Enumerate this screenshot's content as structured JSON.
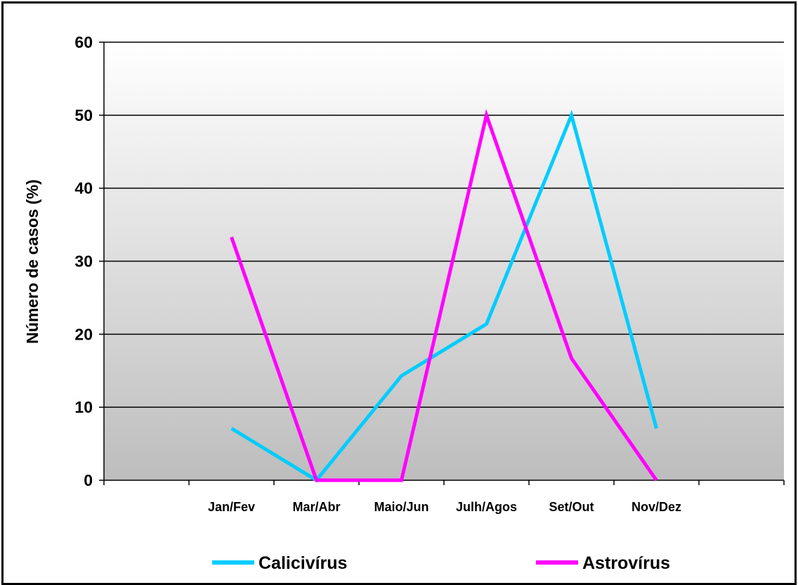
{
  "chart_data": {
    "type": "line",
    "categories": [
      "",
      "Jan/Fev",
      "Mar/Abr",
      "Maio/Jun",
      "Julh/Agos",
      "Set/Out",
      "Nov/Dez",
      ""
    ],
    "series": [
      {
        "name": "Calicivírus",
        "color": "#00ccff",
        "values": [
          null,
          7.1,
          0,
          14.3,
          21.4,
          50,
          7.1,
          null
        ]
      },
      {
        "name": "Astrovírus",
        "color": "#ff00ff",
        "values": [
          null,
          33.3,
          0,
          0,
          50,
          16.7,
          0,
          null
        ]
      }
    ],
    "title": "",
    "xlabel": "",
    "ylabel": "Número de casos (%)",
    "ylim": [
      0,
      60
    ],
    "yticks": [
      "0",
      "10",
      "20",
      "30",
      "40",
      "50",
      "60"
    ],
    "grid": true,
    "legend": "bottom",
    "background": "gradient white-to-gray"
  }
}
